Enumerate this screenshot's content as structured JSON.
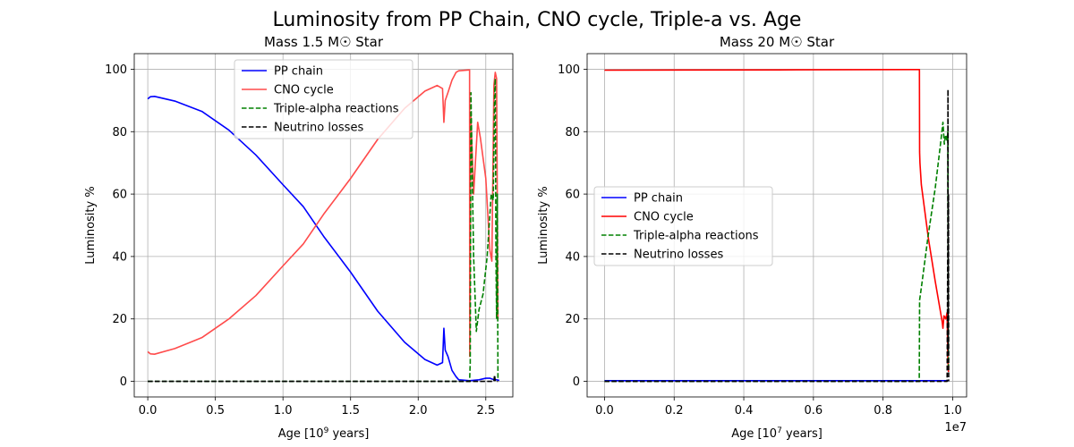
{
  "figure": {
    "suptitle": "Luminosity from PP Chain, CNO cycle, Triple-a vs. Age"
  },
  "chart_data": [
    {
      "type": "line",
      "title": "Mass 1.5 M☉ Star",
      "xlabel_base": "Age [10",
      "xlabel_exp": "9",
      "xlabel_tail": " years]",
      "ylabel": "Luminosity %",
      "xlim": [
        -0.1,
        2.7
      ],
      "ylim": [
        -5,
        105
      ],
      "xticks": [
        0.0,
        0.5,
        1.0,
        1.5,
        2.0,
        2.5
      ],
      "xtick_labels": [
        "0.0",
        "0.5",
        "1.0",
        "1.5",
        "2.0",
        "2.5"
      ],
      "yticks": [
        0,
        20,
        40,
        60,
        80,
        100
      ],
      "ytick_labels": [
        "0",
        "20",
        "40",
        "60",
        "80",
        "100"
      ],
      "offset_label": "",
      "grid": true,
      "legend_position": "upper-center",
      "series": [
        {
          "name": "PP chain",
          "color": "#0000ff",
          "dash": "solid",
          "opacity": 1,
          "points": [
            [
              0.0,
              90.5
            ],
            [
              0.02,
              91.2
            ],
            [
              0.05,
              91.3
            ],
            [
              0.2,
              89.8
            ],
            [
              0.4,
              86.5
            ],
            [
              0.6,
              80.5
            ],
            [
              0.8,
              72.5
            ],
            [
              1.0,
              63.0
            ],
            [
              1.15,
              56.0
            ],
            [
              1.3,
              46.5
            ],
            [
              1.5,
              35.0
            ],
            [
              1.7,
              22.5
            ],
            [
              1.9,
              12.5
            ],
            [
              2.05,
              7.0
            ],
            [
              2.14,
              5.2
            ],
            [
              2.18,
              6.0
            ],
            [
              2.19,
              17.0
            ],
            [
              2.2,
              10.0
            ],
            [
              2.22,
              8.0
            ],
            [
              2.25,
              3.5
            ],
            [
              2.28,
              1.5
            ],
            [
              2.3,
              0.5
            ],
            [
              2.38,
              0.2
            ],
            [
              2.45,
              0.5
            ],
            [
              2.5,
              1.0
            ],
            [
              2.53,
              1.0
            ],
            [
              2.56,
              0.5
            ],
            [
              2.58,
              0.5
            ],
            [
              2.6,
              0.3
            ]
          ]
        },
        {
          "name": "CNO cycle",
          "color": "#ff4b4b",
          "dash": "solid",
          "opacity": 1,
          "points": [
            [
              0.0,
              9.5
            ],
            [
              0.02,
              8.8
            ],
            [
              0.05,
              8.7
            ],
            [
              0.2,
              10.5
            ],
            [
              0.4,
              14.0
            ],
            [
              0.6,
              20.0
            ],
            [
              0.8,
              27.5
            ],
            [
              1.0,
              37.0
            ],
            [
              1.15,
              44.0
            ],
            [
              1.3,
              53.5
            ],
            [
              1.5,
              65.0
            ],
            [
              1.7,
              77.5
            ],
            [
              1.9,
              87.5
            ],
            [
              2.05,
              93.0
            ],
            [
              2.14,
              94.8
            ],
            [
              2.18,
              93.8
            ],
            [
              2.19,
              83.0
            ],
            [
              2.2,
              90.0
            ],
            [
              2.22,
              92.5
            ],
            [
              2.25,
              96.5
            ],
            [
              2.28,
              99.0
            ],
            [
              2.3,
              99.5
            ],
            [
              2.38,
              99.8
            ],
            [
              2.381,
              8.0
            ],
            [
              2.39,
              85.0
            ],
            [
              2.41,
              60.0
            ],
            [
              2.44,
              83.0
            ],
            [
              2.46,
              78.0
            ],
            [
              2.5,
              65.0
            ],
            [
              2.53,
              42.0
            ],
            [
              2.545,
              38.5
            ],
            [
              2.56,
              95.0
            ],
            [
              2.57,
              99.0
            ],
            [
              2.58,
              97.0
            ],
            [
              2.59,
              20.0
            ]
          ]
        },
        {
          "name": "Triple-alpha reactions",
          "color": "#008000",
          "dash": "dashed",
          "opacity": 1,
          "points": [
            [
              0.0,
              0.0
            ],
            [
              2.38,
              0.0
            ],
            [
              2.385,
              6.0
            ],
            [
              2.39,
              92.5
            ],
            [
              2.41,
              40.0
            ],
            [
              2.43,
              16.0
            ],
            [
              2.45,
              23.0
            ],
            [
              2.48,
              28.0
            ],
            [
              2.51,
              40.0
            ],
            [
              2.54,
              60.0
            ],
            [
              2.555,
              58.0
            ],
            [
              2.565,
              92.0
            ],
            [
              2.57,
              97.0
            ],
            [
              2.575,
              40.0
            ],
            [
              2.58,
              20.0
            ],
            [
              2.585,
              60.0
            ],
            [
              2.59,
              0.5
            ]
          ]
        },
        {
          "name": "Neutrino losses",
          "color": "#000000",
          "dash": "dashed",
          "opacity": 1,
          "points": [
            [
              0.0,
              0.0
            ],
            [
              2.56,
              0.0
            ],
            [
              2.565,
              2.0
            ],
            [
              2.57,
              0.0
            ],
            [
              2.59,
              0.0
            ]
          ]
        }
      ]
    },
    {
      "type": "line",
      "title": "Mass 20 M☉ Star",
      "xlabel_base": "Age [10",
      "xlabel_exp": "7",
      "xlabel_tail": " years]",
      "ylabel": "Luminosity %",
      "xlim": [
        -0.05,
        1.04
      ],
      "ylim": [
        -5,
        105
      ],
      "xticks": [
        0.0,
        0.2,
        0.4,
        0.6,
        0.8,
        1.0
      ],
      "xtick_labels": [
        "0.0",
        "0.2",
        "0.4",
        "0.6",
        "0.8",
        "1.0"
      ],
      "yticks": [
        0,
        20,
        40,
        60,
        80,
        100
      ],
      "ytick_labels": [
        "0",
        "20",
        "40",
        "60",
        "80",
        "100"
      ],
      "offset_label": "1e7",
      "grid": true,
      "legend_position": "center-left",
      "series": [
        {
          "name": "PP chain",
          "color": "#0000ff",
          "dash": "solid",
          "opacity": 1,
          "points": [
            [
              0.0,
              0.2
            ],
            [
              0.98,
              0.2
            ],
            [
              0.988,
              0.2
            ]
          ]
        },
        {
          "name": "CNO cycle",
          "color": "#ff0000",
          "dash": "solid",
          "opacity": 1,
          "points": [
            [
              0.0,
              99.7
            ],
            [
              0.5,
              99.8
            ],
            [
              0.9,
              99.9
            ],
            [
              0.9045,
              99.9
            ],
            [
              0.905,
              73.5
            ],
            [
              0.906,
              70.0
            ],
            [
              0.91,
              63.0
            ],
            [
              0.93,
              46.0
            ],
            [
              0.95,
              32.0
            ],
            [
              0.97,
              19.0
            ],
            [
              0.972,
              17.0
            ],
            [
              0.975,
              21.0
            ],
            [
              0.98,
              20.0
            ],
            [
              0.984,
              22.0
            ],
            [
              0.986,
              8.0
            ],
            [
              0.988,
              3.0
            ]
          ]
        },
        {
          "name": "Triple-alpha reactions",
          "color": "#008000",
          "dash": "dashed",
          "opacity": 1,
          "points": [
            [
              0.0,
              0.0
            ],
            [
              0.904,
              0.0
            ],
            [
              0.905,
              26.0
            ],
            [
              0.91,
              30.0
            ],
            [
              0.93,
              47.0
            ],
            [
              0.95,
              62.0
            ],
            [
              0.965,
              76.0
            ],
            [
              0.972,
              83.0
            ],
            [
              0.976,
              76.0
            ],
            [
              0.98,
              79.0
            ],
            [
              0.984,
              77.0
            ],
            [
              0.986,
              80.0
            ],
            [
              0.988,
              5.0
            ]
          ]
        },
        {
          "name": "Neutrino losses",
          "color": "#000000",
          "dash": "dashed",
          "opacity": 1,
          "points": [
            [
              0.0,
              0.0
            ],
            [
              0.984,
              0.0
            ],
            [
              0.986,
              45.0
            ],
            [
              0.9865,
              93.5
            ],
            [
              0.987,
              10.0
            ],
            [
              0.988,
              60.0
            ],
            [
              0.9885,
              0.0
            ]
          ]
        }
      ]
    }
  ]
}
